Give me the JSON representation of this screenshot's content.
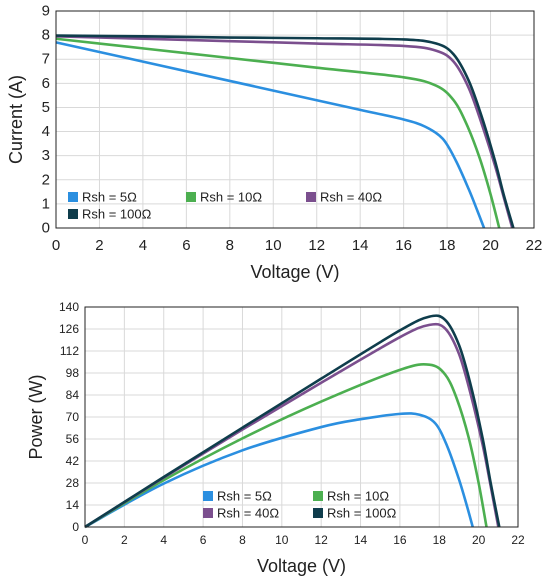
{
  "chart_data": [
    {
      "type": "line",
      "xlabel": "Voltage (V)",
      "ylabel": "Current (A)",
      "xlim": [
        0,
        22
      ],
      "ylim": [
        0,
        9
      ],
      "xticks": [
        0,
        2,
        4,
        6,
        8,
        10,
        12,
        14,
        16,
        18,
        20,
        22
      ],
      "yticks": [
        0,
        1,
        2,
        3,
        4,
        5,
        6,
        7,
        8,
        9
      ],
      "grid": true,
      "legend": "bottom-left",
      "series": [
        {
          "name": "Rsh = 5Ω",
          "color": "#2b8fe0",
          "x": [
            0,
            4,
            8,
            12,
            14,
            16,
            17,
            17.8,
            18.4,
            19.0,
            19.4,
            19.7
          ],
          "y": [
            7.7,
            6.9,
            6.1,
            5.3,
            4.9,
            4.5,
            4.2,
            3.7,
            2.8,
            1.6,
            0.7,
            0
          ]
        },
        {
          "name": "Rsh = 10Ω",
          "color": "#4caf50",
          "x": [
            0,
            4,
            8,
            12,
            16,
            17.5,
            18.3,
            18.9,
            19.5,
            20.0,
            20.4
          ],
          "y": [
            7.85,
            7.45,
            7.05,
            6.65,
            6.25,
            5.9,
            5.3,
            4.3,
            2.9,
            1.4,
            0
          ]
        },
        {
          "name": "Rsh = 40Ω",
          "color": "#7b4f8e",
          "x": [
            0,
            4,
            8,
            12,
            16,
            17.5,
            18.3,
            19.0,
            19.6,
            20.2,
            20.6,
            21.0
          ],
          "y": [
            7.95,
            7.85,
            7.75,
            7.65,
            7.55,
            7.35,
            6.9,
            5.8,
            4.3,
            2.6,
            1.3,
            0
          ]
        },
        {
          "name": "Rsh = 100Ω",
          "color": "#0f3d4c",
          "x": [
            0,
            4,
            8,
            12,
            16,
            17.5,
            18.3,
            19.0,
            19.6,
            20.2,
            20.6,
            21.05
          ],
          "y": [
            7.98,
            7.95,
            7.9,
            7.87,
            7.82,
            7.65,
            7.2,
            6.1,
            4.6,
            2.8,
            1.4,
            0
          ]
        }
      ]
    },
    {
      "type": "line",
      "xlabel": "Voltage (V)",
      "ylabel": "Power (W)",
      "xlim": [
        0,
        22
      ],
      "ylim": [
        0,
        140
      ],
      "xticks": [
        0,
        2,
        4,
        6,
        8,
        10,
        12,
        14,
        16,
        18,
        20,
        22
      ],
      "yticks": [
        0,
        14,
        28,
        42,
        56,
        70,
        84,
        98,
        112,
        126,
        140
      ],
      "grid": true,
      "legend": "bottom-center",
      "series": [
        {
          "name": "Rsh = 5Ω",
          "color": "#2b8fe0",
          "x": [
            0,
            4,
            8,
            12,
            14,
            16,
            17,
            17.8,
            18.4,
            19.0,
            19.4,
            19.7
          ],
          "y": [
            0,
            27.6,
            48.8,
            63.6,
            68.6,
            72.0,
            71.4,
            65.9,
            51.5,
            30.4,
            13.6,
            0
          ]
        },
        {
          "name": "Rsh = 10Ω",
          "color": "#4caf50",
          "x": [
            0,
            4,
            8,
            12,
            16,
            17.5,
            18.3,
            18.9,
            19.5,
            20.0,
            20.4
          ],
          "y": [
            0,
            29.8,
            56.4,
            79.8,
            100.0,
            103.3,
            97.0,
            81.3,
            56.6,
            28.0,
            0
          ]
        },
        {
          "name": "Rsh = 40Ω",
          "color": "#7b4f8e",
          "x": [
            0,
            4,
            8,
            12,
            16,
            17.5,
            18.3,
            19.0,
            19.6,
            20.2,
            20.6,
            21.0
          ],
          "y": [
            0,
            31.4,
            62.0,
            91.8,
            120.8,
            128.6,
            126.3,
            110.2,
            84.3,
            52.5,
            26.8,
            0
          ]
        },
        {
          "name": "Rsh = 100Ω",
          "color": "#0f3d4c",
          "x": [
            0,
            4,
            8,
            12,
            16,
            17.5,
            18.3,
            19.0,
            19.6,
            20.2,
            20.6,
            21.05
          ],
          "y": [
            0,
            31.8,
            63.2,
            94.4,
            125.1,
            133.9,
            131.8,
            115.9,
            90.2,
            56.6,
            28.8,
            0
          ]
        }
      ]
    }
  ]
}
